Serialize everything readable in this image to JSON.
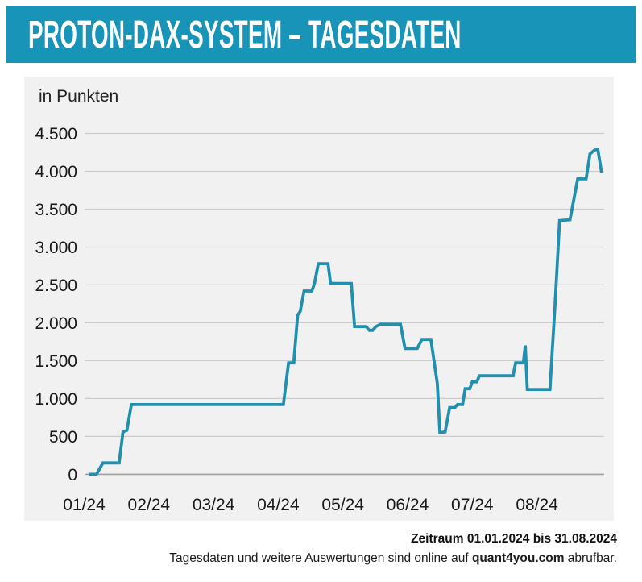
{
  "header": {
    "title": "PROTON-DAX-SYSTEM – TAGESDATEN",
    "bg_color": "#1794b8",
    "text_color": "#ffffff"
  },
  "chart_data": {
    "type": "line",
    "title": "PROTON-DAX-SYSTEM – TAGESDATEN",
    "unit_label": "in Punkten",
    "x_unit": "months since 2024-01-01 (0 = 01/24, 7 = 08/24)",
    "xtick_positions": [
      0,
      1,
      2,
      3,
      4,
      5,
      6,
      7
    ],
    "xtick_labels": [
      "01/24",
      "02/24",
      "03/24",
      "04/24",
      "05/24",
      "06/24",
      "07/24",
      "08/24"
    ],
    "xlim": [
      0,
      8.04
    ],
    "ylim": [
      0,
      4500
    ],
    "ytick_values": [
      0,
      500,
      1000,
      1500,
      2000,
      2500,
      3000,
      3500,
      4000,
      4500
    ],
    "ytick_labels": [
      "0",
      "500",
      "1.000",
      "1.500",
      "2.000",
      "2.500",
      "3.000",
      "3.500",
      "4.000",
      "4.500"
    ],
    "grid": true,
    "legend": "none",
    "panel_bg": "#f2f1f2",
    "grid_color": "#cbcbcb",
    "zero_line_color": "#9f9f9f",
    "line_color": "#2090ae",
    "series": [
      {
        "name": "PROTON-DAX-SYSTEM",
        "points": [
          [
            0.07,
            0
          ],
          [
            0.19,
            0
          ],
          [
            0.29,
            150
          ],
          [
            0.54,
            150
          ],
          [
            0.6,
            560
          ],
          [
            0.66,
            580
          ],
          [
            0.73,
            920
          ],
          [
            3.08,
            920
          ],
          [
            3.16,
            1470
          ],
          [
            3.24,
            1470
          ],
          [
            3.3,
            2100
          ],
          [
            3.34,
            2150
          ],
          [
            3.4,
            2420
          ],
          [
            3.52,
            2420
          ],
          [
            3.56,
            2520
          ],
          [
            3.62,
            2780
          ],
          [
            3.77,
            2780
          ],
          [
            3.81,
            2520
          ],
          [
            4.13,
            2520
          ],
          [
            4.18,
            1950
          ],
          [
            4.36,
            1950
          ],
          [
            4.41,
            1900
          ],
          [
            4.46,
            1900
          ],
          [
            4.51,
            1950
          ],
          [
            4.58,
            1980
          ],
          [
            4.89,
            1980
          ],
          [
            4.96,
            1660
          ],
          [
            5.15,
            1660
          ],
          [
            5.22,
            1780
          ],
          [
            5.36,
            1780
          ],
          [
            5.46,
            1200
          ],
          [
            5.5,
            550
          ],
          [
            5.58,
            560
          ],
          [
            5.65,
            880
          ],
          [
            5.73,
            880
          ],
          [
            5.77,
            920
          ],
          [
            5.85,
            920
          ],
          [
            5.89,
            1130
          ],
          [
            5.96,
            1130
          ],
          [
            6.0,
            1220
          ],
          [
            6.07,
            1220
          ],
          [
            6.11,
            1300
          ],
          [
            6.63,
            1300
          ],
          [
            6.67,
            1470
          ],
          [
            6.79,
            1470
          ],
          [
            6.82,
            1700
          ],
          [
            6.85,
            1120
          ],
          [
            7.2,
            1120
          ],
          [
            7.28,
            2250
          ],
          [
            7.35,
            3350
          ],
          [
            7.51,
            3360
          ],
          [
            7.63,
            3900
          ],
          [
            7.76,
            3900
          ],
          [
            7.82,
            4230
          ],
          [
            7.89,
            4280
          ],
          [
            7.94,
            4290
          ],
          [
            8.0,
            3980
          ]
        ]
      }
    ]
  },
  "footer": {
    "line1": "Zeitraum 01.01.2024 bis 31.08.2024",
    "line2_prefix": "Tagesdaten und weitere Auswertungen sind online auf ",
    "line2_brand": "quant4you.com",
    "line2_suffix": " abrufbar."
  }
}
